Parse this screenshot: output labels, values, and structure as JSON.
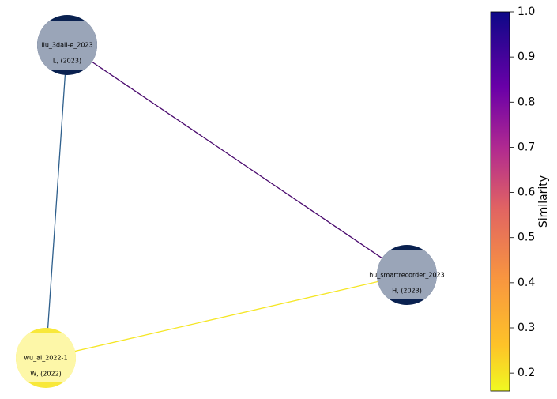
{
  "nodes": [
    {
      "id": "liu",
      "label": "liu_3dall-e_2023",
      "sublabel": "L, (2023)",
      "color": "#0a2150",
      "box_color": "#9aa5b8"
    },
    {
      "id": "hu",
      "label": "hu_smartrecorder_2023",
      "sublabel": "H, (2023)",
      "color": "#0a2150",
      "box_color": "#9aa5b8"
    },
    {
      "id": "wu",
      "label": "wu_ai_2022-1",
      "sublabel": "W, (2022)",
      "color": "#f8e83a",
      "box_color": "#fdf7a8"
    }
  ],
  "edges": [
    {
      "source": "liu",
      "target": "hu",
      "color": "#4a0a6e"
    },
    {
      "source": "liu",
      "target": "wu",
      "color": "#2e5f8c"
    },
    {
      "source": "wu",
      "target": "hu",
      "color": "#f5e624"
    }
  ],
  "colorbar": {
    "label": "Similarity",
    "lim": [
      0.16,
      1
    ],
    "ticks": [
      0.2,
      0.3,
      0.4,
      0.5,
      0.6,
      0.7,
      0.8,
      0.9,
      {
        "value": 1,
        "label": "1.0"
      }
    ]
  }
}
